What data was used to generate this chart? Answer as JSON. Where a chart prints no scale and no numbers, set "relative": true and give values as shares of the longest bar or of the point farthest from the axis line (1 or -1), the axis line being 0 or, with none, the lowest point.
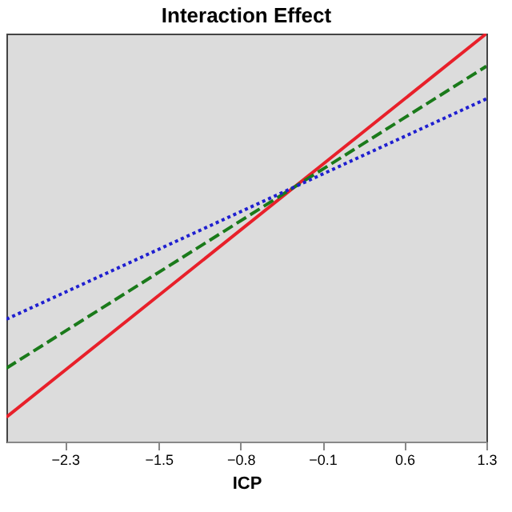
{
  "chart_data": {
    "type": "line",
    "title": "Interaction Effect",
    "xlabel": "ICP",
    "relative": true,
    "xlim": [
      -2.8,
      1.3
    ],
    "xticks": [
      -2.3,
      -1.5,
      -0.8,
      -0.1,
      0.6,
      1.3
    ],
    "x": [
      -2.8,
      1.3
    ],
    "series": [
      {
        "color": "#e8202a",
        "values": [
          0.06,
          1.0
        ],
        "line_style": "solid"
      },
      {
        "color": "#1a7a1a",
        "values": [
          0.18,
          0.92
        ],
        "line_style": "dashed"
      },
      {
        "color": "#1f1fd0",
        "values": [
          0.3,
          0.84
        ],
        "line_style": "dotted"
      }
    ]
  }
}
